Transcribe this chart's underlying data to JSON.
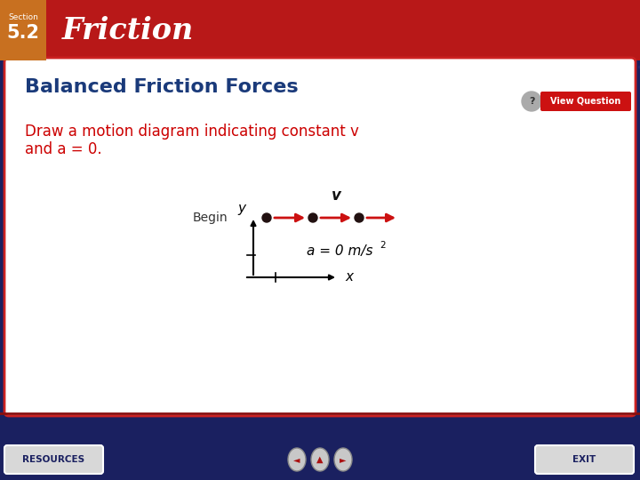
{
  "header_bg": "#b81818",
  "header_dark_bg": "#c87020",
  "section_text": "Section",
  "section_number": "5.2",
  "title_main": "Friction",
  "card_title": "Balanced Friction Forces",
  "card_title_color": "#1a3a7a",
  "question_line1": "Draw a motion diagram indicating constant v",
  "question_line2": "and a = 0.",
  "question_color": "#cc0000",
  "footer_bg": "#1a2060",
  "bg_grid_color": "#252870",
  "arrow_color": "#cc1111",
  "dot_color": "#221111",
  "begin_label": "Begin",
  "v_label": "v",
  "a_label": "a = 0 m/s",
  "a_sup": "2",
  "x_label": "x",
  "y_label": "y",
  "view_question_text": "View Question",
  "view_question_bg": "#cc1111",
  "resources_text": "RESOURCES",
  "exit_text": "EXIT"
}
